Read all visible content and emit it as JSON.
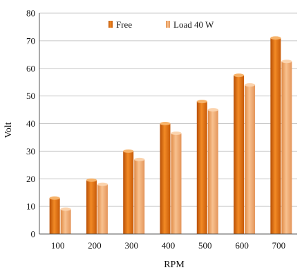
{
  "chart_data": {
    "type": "bar",
    "title": "",
    "xlabel": "RPM",
    "ylabel": "Volt",
    "categories": [
      "100",
      "200",
      "300",
      "400",
      "500",
      "600",
      "700"
    ],
    "series": [
      {
        "name": "Free",
        "values": [
          13,
          19.5,
          30,
          40,
          48,
          57.5,
          71
        ],
        "color": "#e8720c"
      },
      {
        "name": "Load 40 W",
        "values": [
          9,
          18,
          27,
          36.5,
          45,
          54,
          62.5
        ],
        "color": "#f2a869"
      }
    ],
    "ylim": [
      0,
      80
    ],
    "yticks": [
      0,
      10,
      20,
      30,
      40,
      50,
      60,
      70,
      80
    ],
    "grid": true,
    "legend": "top-center"
  }
}
